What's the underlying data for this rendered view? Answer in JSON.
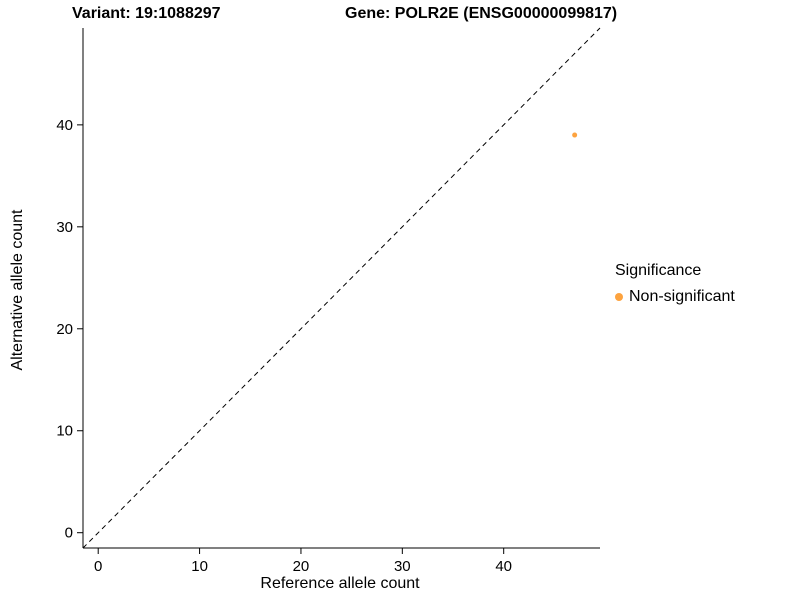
{
  "header": {
    "title_left": "Variant: 19:1088297",
    "title_right": "Gene: POLR2E (ENSG00000099817)"
  },
  "chart_data": {
    "type": "scatter",
    "xlabel": "Reference allele count",
    "ylabel": "Alternative allele count",
    "xlim": [
      -1.5,
      49.5
    ],
    "ylim": [
      -1.5,
      49.5
    ],
    "xticks": [
      0,
      10,
      20,
      30,
      40
    ],
    "yticks": [
      0,
      10,
      20,
      30,
      40
    ],
    "grid": false,
    "points": [
      {
        "x": 47,
        "y": 39,
        "series": "Non-significant"
      }
    ],
    "identity_line": {
      "style": "dashed",
      "from": [
        -1.5,
        -1.5
      ],
      "to": [
        49.5,
        49.5
      ],
      "color": "#000000"
    },
    "point_color": "#FDA33F",
    "point_radius": 2.5,
    "legend": {
      "position": "right",
      "title": "Significance",
      "entries": [
        {
          "label": "Non-significant",
          "color": "#FDA33F"
        }
      ]
    }
  }
}
